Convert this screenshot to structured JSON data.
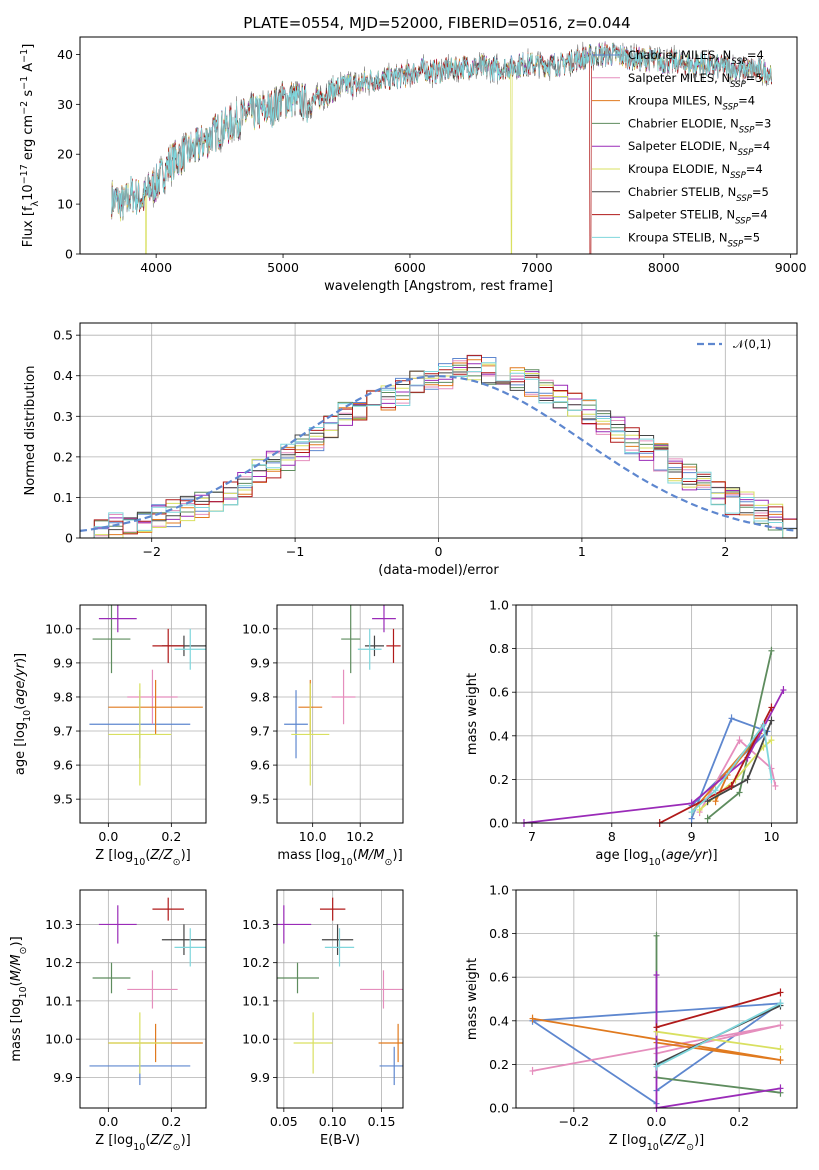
{
  "title": "PLATE=0554, MJD=52000, FIBERID=0516, z=0.044",
  "colors": {
    "Chabrier MILES": "#5e87cf",
    "Salpeter MILES": "#e58ebd",
    "Kroupa MILES": "#e07a1f",
    "Chabrier ELODIE": "#5e8c5e",
    "Salpeter ELODIE": "#9a2bb8",
    "Kroupa ELODIE": "#d9e060",
    "Chabrier STELIB": "#444444",
    "Salpeter STELIB": "#b01a1a",
    "Kroupa STELIB": "#7fd6dc"
  },
  "legend": [
    {
      "label": "Chabrier MILES, N",
      "sub": "SSP",
      "tail": "=4",
      "key": "Chabrier MILES"
    },
    {
      "label": "Salpeter MILES, N",
      "sub": "SSP",
      "tail": "=5",
      "key": "Salpeter MILES"
    },
    {
      "label": "Kroupa MILES, N",
      "sub": "SSP",
      "tail": "=4",
      "key": "Kroupa MILES"
    },
    {
      "label": "Chabrier ELODIE, N",
      "sub": "SSP",
      "tail": "=3",
      "key": "Chabrier ELODIE"
    },
    {
      "label": "Salpeter ELODIE, N",
      "sub": "SSP",
      "tail": "=4",
      "key": "Salpeter ELODIE"
    },
    {
      "label": "Kroupa ELODIE, N",
      "sub": "SSP",
      "tail": "=4",
      "key": "Kroupa ELODIE"
    },
    {
      "label": "Chabrier STELIB, N",
      "sub": "SSP",
      "tail": "=5",
      "key": "Chabrier STELIB"
    },
    {
      "label": "Salpeter STELIB, N",
      "sub": "SSP",
      "tail": "=4",
      "key": "Salpeter STELIB"
    },
    {
      "label": "Kroupa STELIB, N",
      "sub": "SSP",
      "tail": "=5",
      "key": "Kroupa STELIB"
    }
  ],
  "chart_data": [
    {
      "id": "spectrum",
      "type": "line",
      "xlabel": "wavelength [Angstrom, rest frame]",
      "ylabel": "Flux [f_λ 10^-17 erg cm^-2 s^-1 A^-1]",
      "xlim": [
        3400,
        9050
      ],
      "ylim": [
        0,
        43.5
      ],
      "xticks": [
        4000,
        5000,
        6000,
        7000,
        8000,
        9000
      ],
      "yticks": [
        0,
        10,
        20,
        30,
        40
      ],
      "observed_envelope": {
        "x": [
          3650,
          3700,
          3750,
          3800,
          3850,
          3900,
          3950,
          4000,
          4100,
          4200,
          4300,
          4400,
          4500,
          4600,
          4700,
          4800,
          4900,
          5000,
          5100,
          5200,
          5300,
          5400,
          5500,
          5600,
          5700,
          5800,
          5900,
          6000,
          6100,
          6200,
          6300,
          6400,
          6500,
          6600,
          6700,
          6800,
          6900,
          7000,
          7100,
          7200,
          7300,
          7400,
          7500,
          7600,
          7700,
          7800,
          7900,
          8000,
          8100,
          8200,
          8300,
          8400,
          8500,
          8600,
          8700,
          8800,
          8850
        ],
        "y": [
          11,
          10.5,
          10,
          12,
          11.5,
          11,
          13,
          14,
          18,
          20,
          21,
          23,
          25,
          26,
          28,
          28.5,
          29,
          31,
          31,
          30,
          31.5,
          33,
          34,
          34,
          35,
          35,
          35.5,
          36,
          37,
          36.5,
          37,
          37.5,
          37.5,
          37.5,
          37,
          37.5,
          38,
          38,
          38,
          38,
          39,
          39.5,
          40,
          40,
          39.5,
          39,
          39,
          38.5,
          38.5,
          38,
          38,
          37.5,
          37.5,
          37,
          37,
          36.5,
          36.5
        ]
      },
      "model_dropouts": [
        {
          "model": "Kroupa ELODIE",
          "x": 3920
        },
        {
          "model": "Kroupa ELODIE",
          "x": 6800
        },
        {
          "model": "Salpeter STELIB",
          "x": 7420
        }
      ]
    },
    {
      "id": "residual_hist",
      "type": "histogram",
      "xlabel": "(data-model)/error",
      "ylabel": "Normed distribution",
      "xlim": [
        -2.5,
        2.5
      ],
      "ylim": [
        0,
        0.53
      ],
      "xticks": [
        -2,
        -1,
        0,
        1,
        2
      ],
      "yticks": [
        0,
        0.1,
        0.2,
        0.3,
        0.4,
        0.5
      ],
      "bin_edges_from": -2.5,
      "bin_width": 0.1,
      "reference_curve": {
        "name": "𝒩(0,1)",
        "mean": 0,
        "sigma": 1
      },
      "approx_heights": [
        0.02,
        0.02,
        0.03,
        0.04,
        0.04,
        0.05,
        0.06,
        0.07,
        0.08,
        0.1,
        0.11,
        0.13,
        0.16,
        0.18,
        0.2,
        0.22,
        0.24,
        0.27,
        0.3,
        0.31,
        0.33,
        0.35,
        0.36,
        0.38,
        0.39,
        0.4,
        0.41,
        0.42,
        0.41,
        0.4,
        0.39,
        0.38,
        0.36,
        0.35,
        0.33,
        0.31,
        0.29,
        0.27,
        0.24,
        0.22,
        0.2,
        0.17,
        0.15,
        0.13,
        0.11,
        0.09,
        0.08,
        0.06,
        0.05,
        0.03
      ]
    },
    {
      "id": "age_vs_z",
      "type": "errorbar",
      "xlabel": "Z [log10(Z/Z⊙)]",
      "ylabel": "age  [log10(age/yr)]",
      "xlim": [
        -0.09,
        0.31
      ],
      "ylim": [
        9.43,
        10.07
      ],
      "xticks": [
        0.0,
        0.2
      ],
      "xticklabels": [
        "0.0",
        "0.2"
      ],
      "yticks": [
        9.5,
        9.6,
        9.7,
        9.8,
        9.9,
        10.0
      ],
      "yticklabels": [
        "9.5",
        "9.6",
        "9.7",
        "9.8",
        "9.9",
        "10.0"
      ]
    },
    {
      "id": "age_vs_mass",
      "type": "errorbar",
      "xlabel": "mass [log10(M/M⊙)]",
      "ylabel": "",
      "xlim": [
        9.85,
        10.38
      ],
      "ylim": [
        9.43,
        10.07
      ],
      "xticks": [
        10.0,
        10.2
      ],
      "xticklabels": [
        "10.0",
        "10.2"
      ],
      "yticks": [
        9.5,
        9.6,
        9.7,
        9.8,
        9.9,
        10.0
      ],
      "yticklabels": [
        "9.5",
        "9.6",
        "9.7",
        "9.8",
        "9.9",
        "10.0"
      ]
    },
    {
      "id": "mass_vs_z",
      "type": "errorbar",
      "xlabel": "Z [log10(Z/Z⊙)]",
      "ylabel": "mass [log10(M/M⊙)]",
      "xlim": [
        -0.09,
        0.31
      ],
      "ylim": [
        9.82,
        10.39
      ],
      "xticks": [
        0.0,
        0.2
      ],
      "xticklabels": [
        "0.0",
        "0.2"
      ],
      "yticks": [
        9.9,
        10.0,
        10.1,
        10.2,
        10.3
      ],
      "yticklabels": [
        "9.9",
        "10.0",
        "10.1",
        "10.2",
        "10.3"
      ]
    },
    {
      "id": "mass_vs_ebv",
      "type": "errorbar",
      "xlabel": "E(B-V)",
      "ylabel": "",
      "xlim": [
        0.043,
        0.172
      ],
      "ylim": [
        9.82,
        10.39
      ],
      "xticks": [
        0.05,
        0.1,
        0.15
      ],
      "xticklabels": [
        "0.05",
        "0.10",
        "0.15"
      ],
      "yticks": [
        9.9,
        10.0,
        10.1,
        10.2,
        10.3
      ],
      "yticklabels": [
        "9.9",
        "10.0",
        "10.1",
        "10.2",
        "10.3"
      ]
    },
    {
      "id": "weight_vs_age",
      "type": "line",
      "xlabel": "age  [log10(age/yr)]",
      "ylabel": "mass weight",
      "xlim": [
        6.8,
        10.32
      ],
      "ylim": [
        0,
        1.0
      ],
      "xticks": [
        7,
        8,
        9,
        10
      ],
      "xticklabels": [
        "7",
        "8",
        "9",
        "10"
      ],
      "yticks": [
        0,
        0.2,
        0.4,
        0.6,
        0.8,
        1.0
      ],
      "yticklabels": [
        "0.0",
        "0.2",
        "0.4",
        "0.6",
        "0.8",
        "1.0"
      ]
    },
    {
      "id": "weight_vs_z",
      "type": "line",
      "xlabel": "Z [log10(Z/Z⊙)]",
      "ylabel": "mass weight",
      "xlim": [
        -0.34,
        0.34
      ],
      "ylim": [
        0,
        1.0
      ],
      "xticks": [
        -0.2,
        0.0,
        0.2
      ],
      "xticklabels": [
        "−0.2",
        "0.0",
        "0.2"
      ],
      "yticks": [
        0,
        0.2,
        0.4,
        0.6,
        0.8,
        1.0
      ],
      "yticklabels": [
        "0.0",
        "0.2",
        "0.4",
        "0.6",
        "0.8",
        "1.0"
      ]
    }
  ],
  "models": [
    {
      "key": "Chabrier MILES",
      "Z": [
        0.1,
        0.26
      ],
      "Zerr": [
        0.16,
        0.06
      ],
      "age": [
        9.72,
        9.88
      ],
      "ageerr": [
        0.1,
        0.06
      ],
      "mass": [
        9.93,
        10.16
      ],
      "masserr": [
        0.05,
        0.04
      ],
      "ebv": 0.163,
      "ebverr": 0.015,
      "sfh_age": [
        9.0,
        9.5,
        9.95,
        9.0
      ],
      "sfh_w": [
        0.02,
        0.48,
        0.42,
        0.08
      ],
      "sfh_z": [
        0.0,
        -0.3,
        0.3,
        0.0
      ],
      "sfh_zw": [
        0.02,
        0.4,
        0.48,
        0.08
      ]
    },
    {
      "key": "Salpeter MILES",
      "Z": [
        0.14,
        0.2
      ],
      "Zerr": [
        0.08,
        0.06
      ],
      "age": [
        9.8,
        9.71
      ],
      "ageerr": [
        0.08,
        0.08
      ],
      "mass": [
        10.13,
        10.09
      ],
      "masserr": [
        0.05,
        0.04
      ],
      "ebv": 0.152,
      "ebverr": 0.024,
      "sfh_age": [
        9.1,
        9.6,
        10.0,
        10.05
      ],
      "sfh_w": [
        0.05,
        0.38,
        0.25,
        0.17
      ],
      "sfh_z": [
        -0.3,
        0.3,
        0.0
      ],
      "sfh_zw": [
        0.17,
        0.38,
        0.25
      ]
    },
    {
      "key": "Kroupa MILES",
      "Z": [
        0.15,
        0.1
      ],
      "Zerr": [
        0.15,
        0.06
      ],
      "age": [
        9.77,
        9.55
      ],
      "ageerr": [
        0.08,
        0.08
      ],
      "mass": [
        9.99,
        9.94
      ],
      "masserr": [
        0.05,
        0.04
      ],
      "ebv": 0.167,
      "ebverr": 0.02,
      "sfh_age": [
        9.3,
        9.45,
        9.85,
        9.0
      ],
      "sfh_w": [
        0.1,
        0.22,
        0.41,
        0.05
      ],
      "sfh_z": [
        -0.3,
        0.3,
        0.0
      ],
      "sfh_zw": [
        0.41,
        0.22,
        0.3
      ]
    },
    {
      "key": "Chabrier ELODIE",
      "Z": [
        0.01,
        0.0
      ],
      "Zerr": [
        0.06,
        0.06
      ],
      "age": [
        9.97,
        9.87
      ],
      "ageerr": [
        0.1,
        0.06
      ],
      "mass": [
        10.16,
        10.18
      ],
      "masserr": [
        0.04,
        0.04
      ],
      "ebv": 0.064,
      "ebverr": 0.022,
      "sfh_age": [
        9.2,
        9.6,
        10.0
      ],
      "sfh_w": [
        0.02,
        0.14,
        0.79
      ],
      "sfh_z": [
        0.0,
        0.0,
        0.3
      ],
      "sfh_zw": [
        0.79,
        0.14,
        0.07
      ]
    },
    {
      "key": "Salpeter ELODIE",
      "Z": [
        0.03,
        -0.08
      ],
      "Zerr": [
        0.06,
        0.11
      ],
      "age": [
        10.03,
        9.99
      ],
      "ageerr": [
        0.04,
        0.04
      ],
      "mass": [
        10.3,
        10.31
      ],
      "masserr": [
        0.05,
        0.04
      ],
      "ebv": 0.05,
      "ebverr": 0.028,
      "sfh_age": [
        6.9,
        9.0,
        9.7,
        10.15
      ],
      "sfh_w": [
        0.0,
        0.09,
        0.3,
        0.61
      ],
      "sfh_z": [
        0.0,
        0.0,
        0.3
      ],
      "sfh_zw": [
        0.61,
        0.0,
        0.09
      ]
    },
    {
      "key": "Kroupa ELODIE",
      "Z": [
        0.1,
        0.08
      ],
      "Zerr": [
        0.1,
        0.06
      ],
      "age": [
        9.69,
        9.62
      ],
      "ageerr": [
        0.15,
        0.06
      ],
      "mass": [
        9.99,
        9.97
      ],
      "masserr": [
        0.08,
        0.04
      ],
      "ebv": 0.08,
      "ebverr": 0.02,
      "sfh_age": [
        9.1,
        9.55,
        9.9,
        10.0
      ],
      "sfh_w": [
        0.06,
        0.2,
        0.35,
        0.38
      ],
      "sfh_z": [
        0.0,
        0.3
      ],
      "sfh_zw": [
        0.35,
        0.27
      ]
    },
    {
      "key": "Chabrier STELIB",
      "Z": [
        0.24,
        0.17
      ],
      "Zerr": [
        0.07,
        0.06
      ],
      "age": [
        9.95,
        10.0
      ],
      "ageerr": [
        0.03,
        0.04
      ],
      "mass": [
        10.26,
        10.27
      ],
      "masserr": [
        0.04,
        0.04
      ],
      "ebv": 0.105,
      "ebverr": 0.016,
      "sfh_age": [
        9.2,
        9.7,
        10.0
      ],
      "sfh_w": [
        0.1,
        0.2,
        0.47
      ],
      "sfh_z": [
        0.0,
        0.3
      ],
      "sfh_zw": [
        0.2,
        0.47
      ]
    },
    {
      "key": "Salpeter STELIB",
      "Z": [
        0.19,
        0.18
      ],
      "Zerr": [
        0.05,
        0.06
      ],
      "age": [
        9.95,
        9.95
      ],
      "ageerr": [
        0.05,
        0.04
      ],
      "mass": [
        10.34,
        10.35
      ],
      "masserr": [
        0.03,
        0.04
      ],
      "ebv": 0.1,
      "ebverr": 0.013,
      "sfh_age": [
        8.6,
        9.5,
        10.0
      ],
      "sfh_w": [
        0.0,
        0.17,
        0.53
      ],
      "sfh_z": [
        0.0,
        0.3
      ],
      "sfh_zw": [
        0.37,
        0.53
      ]
    },
    {
      "key": "Kroupa STELIB",
      "Z": [
        0.26,
        0.22
      ],
      "Zerr": [
        0.05,
        0.06
      ],
      "age": [
        9.94,
        9.98
      ],
      "ageerr": [
        0.06,
        0.04
      ],
      "mass": [
        10.24,
        10.25
      ],
      "masserr": [
        0.05,
        0.04
      ],
      "ebv": 0.107,
      "ebverr": 0.015,
      "sfh_age": [
        9.0,
        9.3,
        9.9,
        10.0
      ],
      "sfh_w": [
        0.05,
        0.15,
        0.45,
        0.2
      ],
      "sfh_z": [
        0.0,
        0.3
      ],
      "sfh_zw": [
        0.19,
        0.48
      ]
    }
  ]
}
